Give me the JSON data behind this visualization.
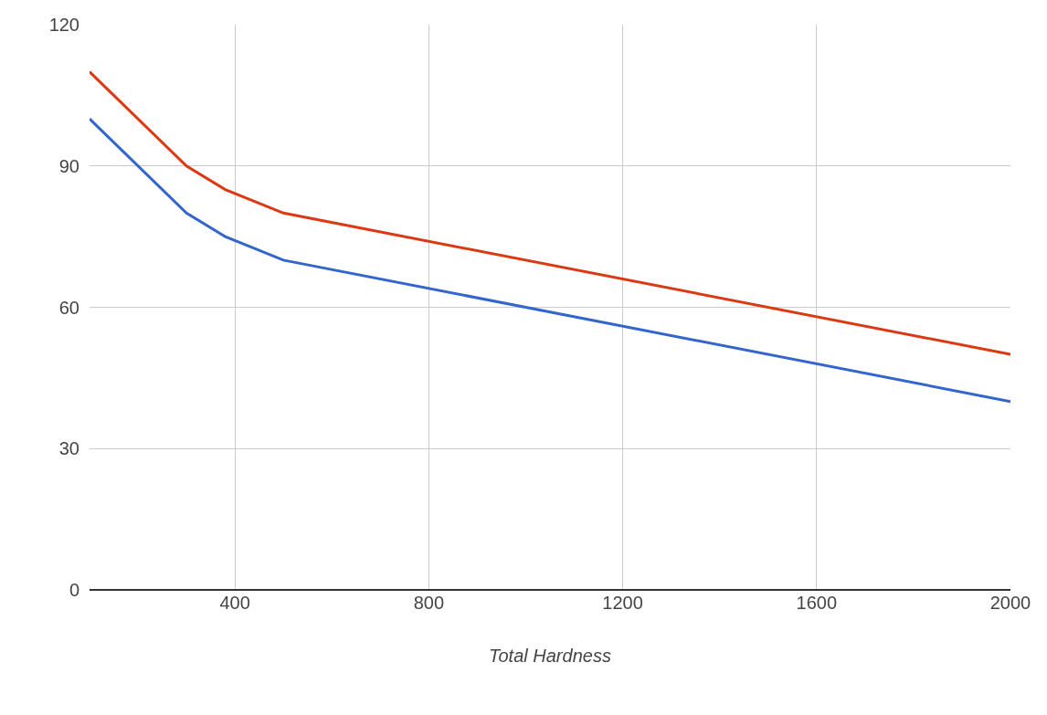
{
  "chart_data": {
    "type": "line",
    "xlabel": "Total Hardness",
    "x": [
      100,
      300,
      380,
      500,
      2000
    ],
    "series": [
      {
        "color": "#dc3912",
        "values": [
          110,
          90,
          85,
          80,
          50
        ]
      },
      {
        "color": "#3366cc",
        "values": [
          100,
          80,
          75,
          70,
          40
        ]
      }
    ],
    "xlim": [
      100,
      2000
    ],
    "xticks": [
      400,
      800,
      1200,
      1600,
      2000
    ],
    "ylim": [
      0,
      120
    ],
    "yticks": [
      0,
      30,
      60,
      90,
      120
    ],
    "grid": true,
    "marker": "none",
    "line_style": "solid"
  }
}
